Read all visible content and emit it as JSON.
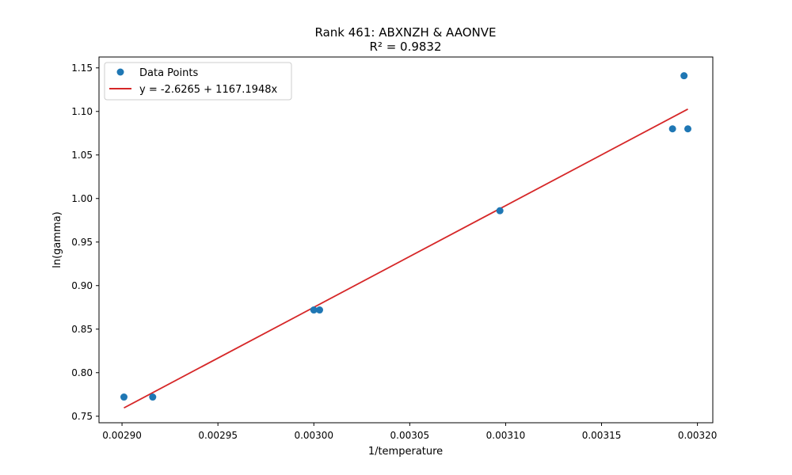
{
  "chart_data": {
    "type": "scatter",
    "title": "Rank 461: ABXNZH & AAONVE",
    "subtitle": "R² = 0.9832",
    "xlabel": "1/temperature",
    "ylabel": "ln(gamma)",
    "xlim": [
      0.002888,
      0.003208
    ],
    "ylim": [
      0.7425,
      1.1625
    ],
    "xticks": [
      "0.00290",
      "0.00295",
      "0.00300",
      "0.00305",
      "0.00310",
      "0.00315",
      "0.00320"
    ],
    "yticks": [
      "0.75",
      "0.80",
      "0.85",
      "0.90",
      "0.95",
      "1.00",
      "1.05",
      "1.10",
      "1.15"
    ],
    "grid": false,
    "legend_position": "top-left",
    "series": [
      {
        "name": "Data Points",
        "kind": "scatter",
        "color": "#1f77b4",
        "points": [
          {
            "x": 0.002901,
            "y": 0.772
          },
          {
            "x": 0.002916,
            "y": 0.772
          },
          {
            "x": 0.003,
            "y": 0.872
          },
          {
            "x": 0.003003,
            "y": 0.872
          },
          {
            "x": 0.003097,
            "y": 0.986
          },
          {
            "x": 0.003187,
            "y": 1.08
          },
          {
            "x": 0.003193,
            "y": 1.141
          },
          {
            "x": 0.003195,
            "y": 1.08
          }
        ]
      },
      {
        "name": "y = -2.6265 + 1167.1948x",
        "kind": "line",
        "color": "#d62728",
        "intercept": -2.6265,
        "slope": 1167.1948,
        "x_range": [
          0.002901,
          0.003195
        ]
      }
    ]
  }
}
